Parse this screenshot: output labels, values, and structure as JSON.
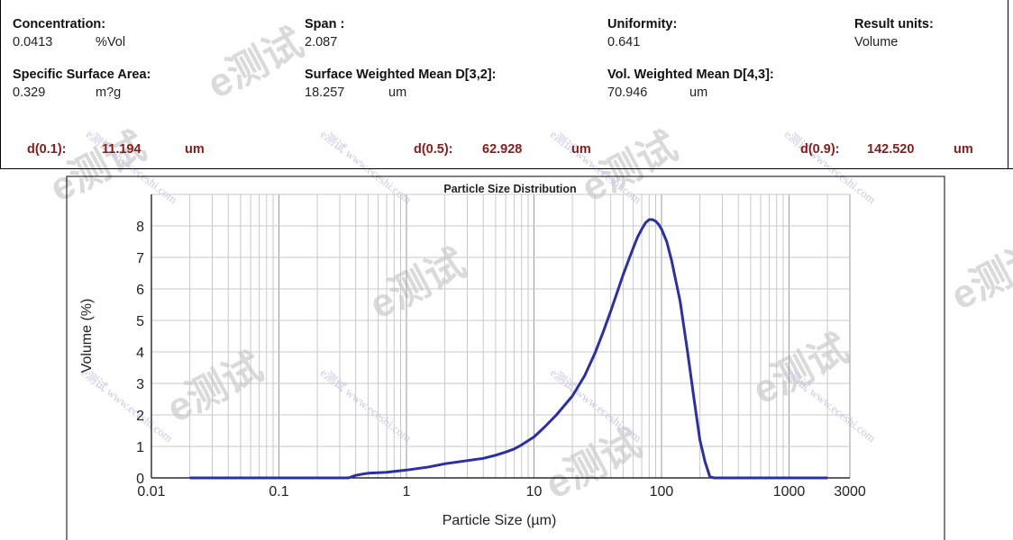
{
  "header": {
    "concentration": {
      "label": "Concentration:",
      "value": "0.0413",
      "unit": "%Vol"
    },
    "span": {
      "label": "Span :",
      "value": "2.087"
    },
    "uniformity": {
      "label": "Uniformity:",
      "value": "0.641"
    },
    "result_units": {
      "label": "Result units:",
      "value": "Volume"
    },
    "ssa": {
      "label": "Specific Surface Area:",
      "value": "0.329",
      "unit": "m?g"
    },
    "d32": {
      "label": "Surface Weighted Mean D[3,2]:",
      "value": "18.257",
      "unit": "um"
    },
    "d43": {
      "label": "Vol. Weighted Mean D[4,3]:",
      "value": "70.946",
      "unit": "um"
    }
  },
  "stats": {
    "d01": {
      "label": "d(0.1):",
      "value": "11.194",
      "unit": "um"
    },
    "d05": {
      "label": "d(0.5):",
      "value": "62.928",
      "unit": "um"
    },
    "d09": {
      "label": "d(0.9):",
      "value": "142.520",
      "unit": "um"
    }
  },
  "watermark": {
    "brand": "e测试",
    "url": "e测试 www.eceshi.com"
  },
  "chart_data": {
    "type": "line",
    "title": "Particle Size Distribution",
    "xlabel": "Particle Size (µm)",
    "ylabel": "Volume (%)",
    "x_scale": "log",
    "xlim": [
      0.01,
      3000
    ],
    "ylim": [
      0,
      9
    ],
    "x_ticks": [
      0.01,
      0.1,
      1,
      10,
      100,
      1000,
      3000
    ],
    "x_tick_labels": [
      "0.01",
      "0.1",
      "1",
      "10",
      "100",
      "1000",
      "3000"
    ],
    "y_ticks": [
      0,
      1,
      2,
      3,
      4,
      5,
      6,
      7,
      8
    ],
    "y_tick_labels": [
      "0",
      "1",
      "2",
      "3",
      "4",
      "5",
      "6",
      "7",
      "8"
    ],
    "grid": true,
    "line_color": "#2b2fa8",
    "series": [
      {
        "x": [
          0.02,
          0.1,
          0.35,
          0.4,
          0.45,
          0.5,
          0.7,
          1,
          1.5,
          2,
          3,
          4,
          5,
          6,
          7,
          8,
          10,
          12,
          15,
          20,
          25,
          30,
          35,
          40,
          45,
          50,
          55,
          60,
          65,
          70,
          75,
          80,
          85,
          90,
          95,
          100,
          110,
          120,
          140,
          160,
          180,
          200,
          220,
          240,
          260,
          300,
          500,
          1000,
          2000
        ],
        "y": [
          0,
          0,
          0,
          0.08,
          0.12,
          0.15,
          0.18,
          0.25,
          0.35,
          0.45,
          0.55,
          0.62,
          0.72,
          0.82,
          0.92,
          1.05,
          1.3,
          1.6,
          2.0,
          2.6,
          3.25,
          3.95,
          4.65,
          5.3,
          5.9,
          6.45,
          6.9,
          7.3,
          7.65,
          7.9,
          8.1,
          8.2,
          8.2,
          8.15,
          8.05,
          7.9,
          7.5,
          6.9,
          5.6,
          4.0,
          2.5,
          1.2,
          0.5,
          0.03,
          0,
          0,
          0,
          0,
          0
        ]
      }
    ]
  }
}
